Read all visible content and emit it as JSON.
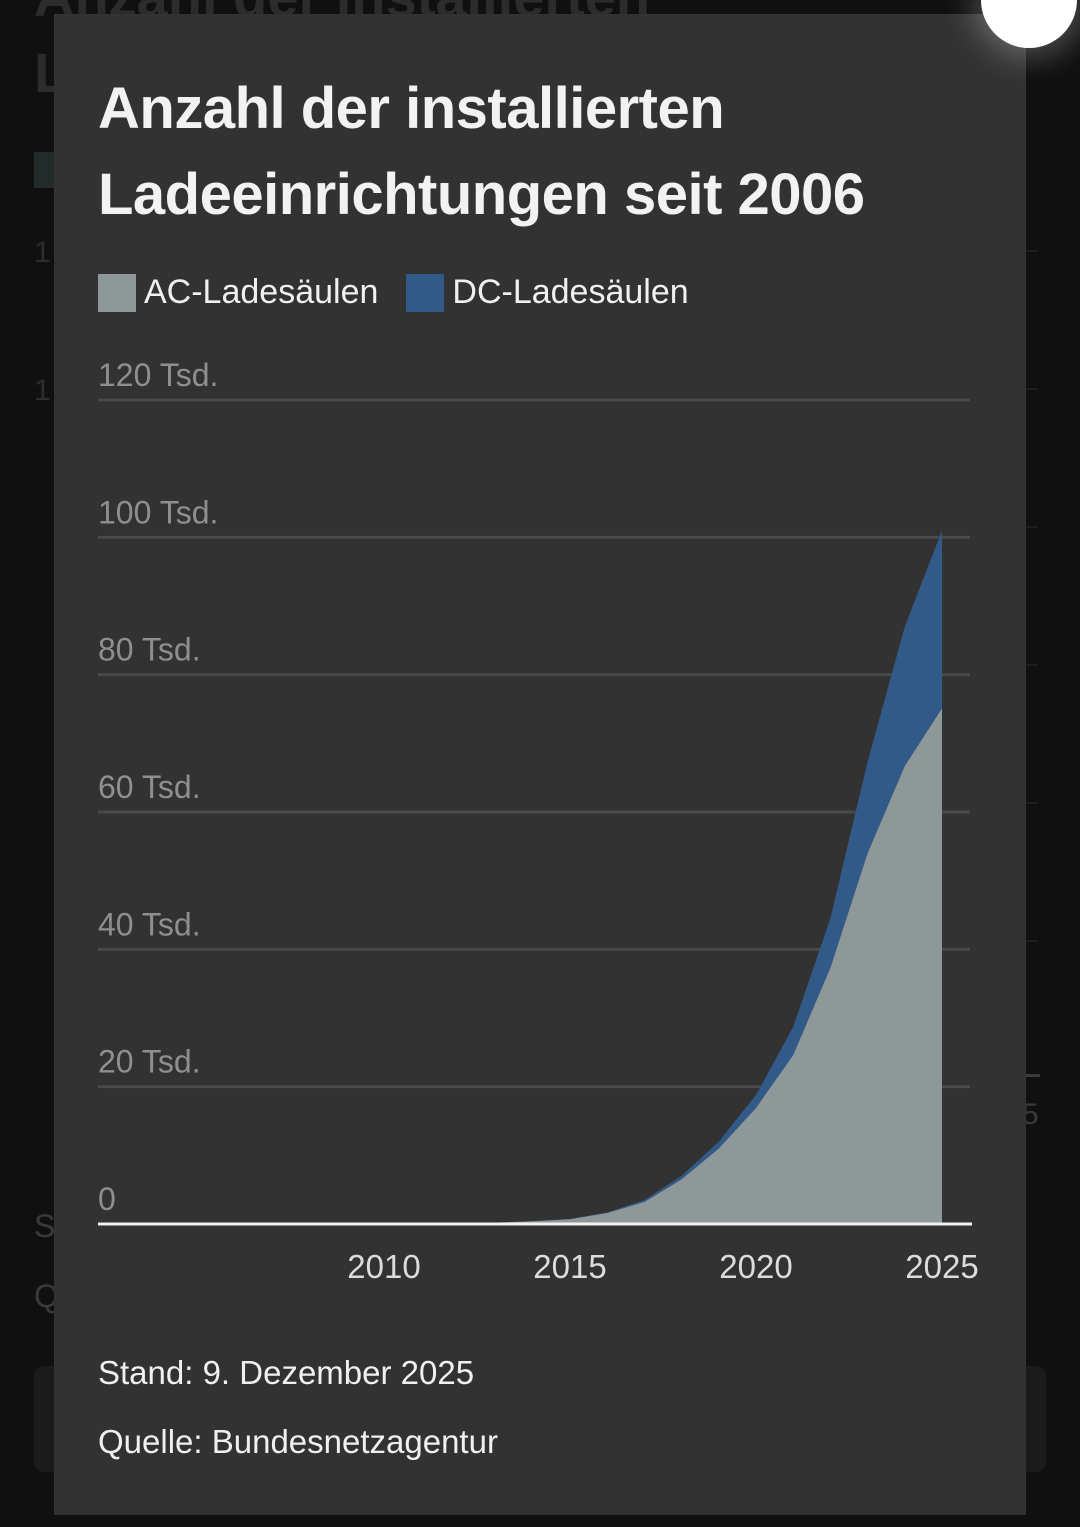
{
  "background": {
    "title_fragment": "Anzahl der installierten",
    "title_fragment2": "L",
    "tick_fragments": [
      "1",
      "1"
    ],
    "year_fragment": "5",
    "footer_fragments": [
      "S",
      "Q"
    ]
  },
  "modal": {
    "title": "Anzahl der installierten Ladeeinrichtungen seit 2006",
    "close_label": "",
    "stand": "Stand: 9. Dezember 2025",
    "quelle": "Quelle: Bundesnetzagentur"
  },
  "legend": [
    {
      "label": "AC-Ladesäulen",
      "color": "#8f9899"
    },
    {
      "label": "DC-Ladesäulen",
      "color": "#325a88"
    }
  ],
  "chart_data": {
    "type": "area",
    "stacked": true,
    "title": "Anzahl der installierten Ladeeinrichtungen seit 2006",
    "xlabel": "",
    "ylabel": "",
    "x": [
      2006,
      2007,
      2008,
      2009,
      2010,
      2011,
      2012,
      2013,
      2014,
      2015,
      2016,
      2017,
      2018,
      2019,
      2020,
      2021,
      2022,
      2023,
      2024,
      2025
    ],
    "series": [
      {
        "name": "AC-Ladesäulen",
        "color": "#8f9899",
        "values": [
          0,
          0,
          0,
          0,
          0,
          0,
          0.05,
          0.2,
          0.4,
          0.7,
          1.6,
          3.2,
          6.5,
          11.0,
          16.9,
          24.6,
          37.3,
          54.0,
          66.7,
          75.1
        ]
      },
      {
        "name": "DC-Ladesäulen",
        "color": "#325a88",
        "values": [
          0,
          0,
          0,
          0,
          0,
          0,
          0,
          0,
          0.02,
          0.05,
          0.1,
          0.3,
          0.5,
          1.0,
          1.9,
          4.1,
          7.2,
          13.3,
          20.3,
          25.9
        ]
      }
    ],
    "yticks": [
      {
        "value": 0,
        "label": "0"
      },
      {
        "value": 20,
        "label": "20 Tsd."
      },
      {
        "value": 40,
        "label": "40 Tsd."
      },
      {
        "value": 60,
        "label": "60 Tsd."
      },
      {
        "value": 80,
        "label": "80 Tsd."
      },
      {
        "value": 100,
        "label": "100 Tsd."
      },
      {
        "value": 120,
        "label": "120 Tsd."
      }
    ],
    "xticks": [
      {
        "value": 2010,
        "label": "2010"
      },
      {
        "value": 2015,
        "label": "2015"
      },
      {
        "value": 2020,
        "label": "2020"
      },
      {
        "value": 2025,
        "label": "2025"
      }
    ],
    "ylim": [
      0,
      120
    ],
    "unit": "Tsd.",
    "grid": true,
    "legend_position": "top-left"
  }
}
